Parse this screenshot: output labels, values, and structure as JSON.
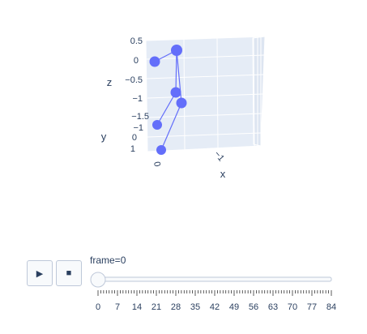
{
  "controls": {
    "play_label": "▶",
    "stop_label": "■",
    "frame_prefix": "frame=",
    "current_frame": "0"
  },
  "slider": {
    "min": 0,
    "max": 84,
    "value": 0,
    "step": 1,
    "tick_labels": [
      "0",
      "7",
      "14",
      "21",
      "28",
      "35",
      "42",
      "49",
      "56",
      "63",
      "70",
      "77",
      "84"
    ]
  },
  "chart_data": {
    "type": "scatter",
    "mode": "3d lines+markers",
    "marker_color": "#636efa",
    "axes": {
      "x": {
        "title": "x",
        "tick_labels": [
          "−1"
        ]
      },
      "y": {
        "title": "y",
        "tick_labels": [
          "−1",
          "0",
          "1"
        ]
      },
      "z": {
        "title": "z",
        "tick_labels": [
          "0.5",
          "0",
          "−0.5",
          "−1",
          "−1.5"
        ]
      }
    },
    "scene_background": "#e5ecf6",
    "grid": true
  }
}
